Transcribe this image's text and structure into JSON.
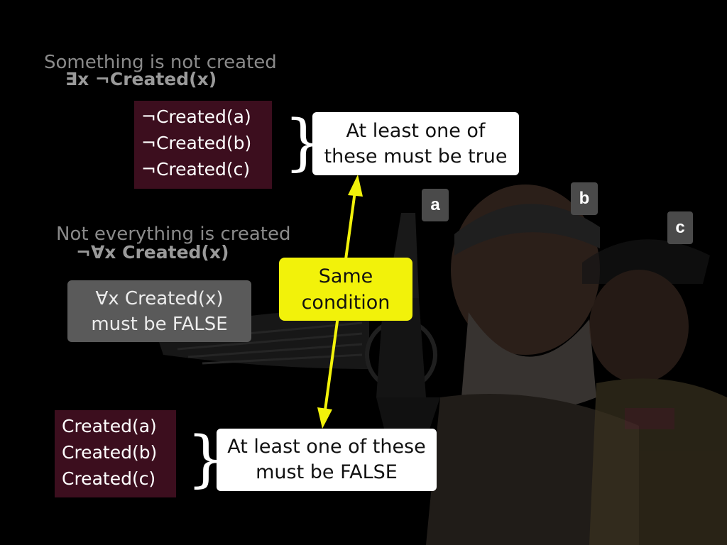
{
  "section1": {
    "heading": "Something is not created",
    "formula": "∃x ¬Created(x)",
    "items": [
      "¬Created(a)",
      "¬Created(b)",
      "¬Created(c)"
    ],
    "note_line1": "At least one of",
    "note_line2": "these must be true"
  },
  "section2": {
    "heading": "Not everything is created",
    "formula": "¬∀x Created(x)",
    "grey_line1": "∀x Created(x)",
    "grey_line2": "must be FALSE",
    "items": [
      "Created(a)",
      "Created(b)",
      "Created(c)"
    ],
    "note_line1": "At least one of these",
    "note_line2": "must be FALSE"
  },
  "center": {
    "line1": "Same",
    "line2": "condition"
  },
  "labels": {
    "a": "a",
    "b": "b",
    "c": "c"
  },
  "colors": {
    "maroon": "#3c0e1e",
    "yellow": "#f2f20a",
    "grey": "#5a5a5a"
  }
}
